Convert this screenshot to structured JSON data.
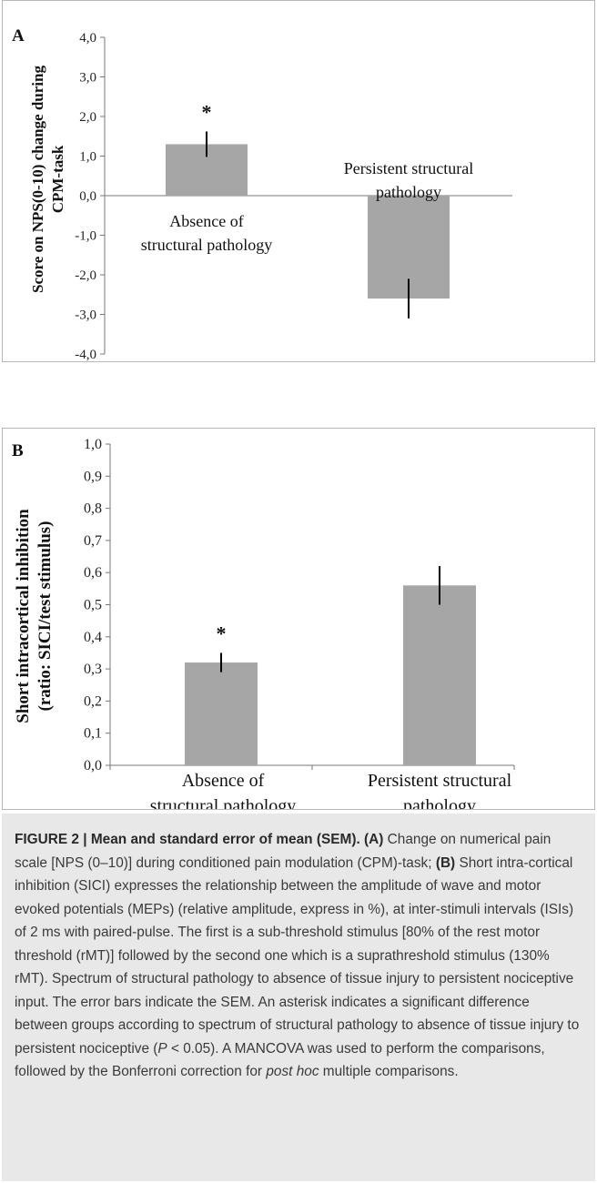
{
  "panels": [
    {
      "label": "A",
      "ylabel_line1": "Score on NPS(0-10) change during",
      "ylabel_line2": "CPM-task",
      "chart_data": {
        "type": "bar",
        "categories": [
          "Absence of structural pathology",
          "Persistent structural pathology"
        ],
        "category_label_lines": [
          [
            "Absence of",
            "structural pathology"
          ],
          [
            "Persistent structural",
            "pathology"
          ]
        ],
        "values": [
          1.3,
          -2.6
        ],
        "errors": [
          0.32,
          0.5
        ],
        "significance": [
          "*",
          ""
        ],
        "ylim": [
          -4.0,
          4.0
        ],
        "yticks": [
          "4,0",
          "3,0",
          "2,0",
          "1,0",
          "0,0",
          "-1,0",
          "-2,0",
          "-3,0",
          "-4,0"
        ],
        "bar_color": "#a6a6a6",
        "grid": false
      }
    },
    {
      "label": "B",
      "ylabel_line1": "Short intracortical inhibition",
      "ylabel_line2": "(ratio: SICI/test stimulus)",
      "chart_data": {
        "type": "bar",
        "categories": [
          "Absence of structural pathology",
          "Persistent structural pathology"
        ],
        "category_label_lines": [
          [
            "Absence of",
            "structural pathology"
          ],
          [
            "Persistent structural",
            "pathology"
          ]
        ],
        "values": [
          0.32,
          0.56
        ],
        "errors": [
          0.03,
          0.06
        ],
        "significance": [
          "*",
          ""
        ],
        "ylim": [
          0.0,
          1.0
        ],
        "yticks": [
          "1,0",
          "0,9",
          "0,8",
          "0,7",
          "0,6",
          "0,5",
          "0,4",
          "0,3",
          "0,2",
          "0,1",
          "0,0"
        ],
        "bar_color": "#a6a6a6",
        "grid": false
      }
    }
  ],
  "caption": {
    "lead": "FIGURE 2 | Mean and standard error of mean (SEM).",
    "a_ref": "(A)",
    "a_text": " Change on numerical pain scale [NPS (0–10)] during conditioned pain modulation (CPM)-task; ",
    "b_ref": "(B)",
    "b_text": " Short intra-cortical inhibition (SICI) expresses the relationship between the amplitude of wave and motor evoked potentials (MEPs) (relative amplitude, express in %), at inter-stimuli intervals (ISIs) of 2 ms with paired-pulse. The first is a sub-threshold stimulus [80% of the rest motor threshold (rMT)] followed by the second one which is a suprathreshold stimulus (130% rMT). Spectrum of structural pathology to absence of tissue injury to persistent nociceptive input. The error bars indicate the SEM. An asterisk indicates a significant difference between groups according to spectrum of structural pathology to absence of tissue injury to persistent nociceptive (",
    "p_var": "P",
    "p_rest": " < 0.05). A MANCOVA was used to perform the comparisons, followed by the Bonferroni correction for ",
    "posthoc": "post hoc",
    "tail": " multiple comparisons."
  }
}
